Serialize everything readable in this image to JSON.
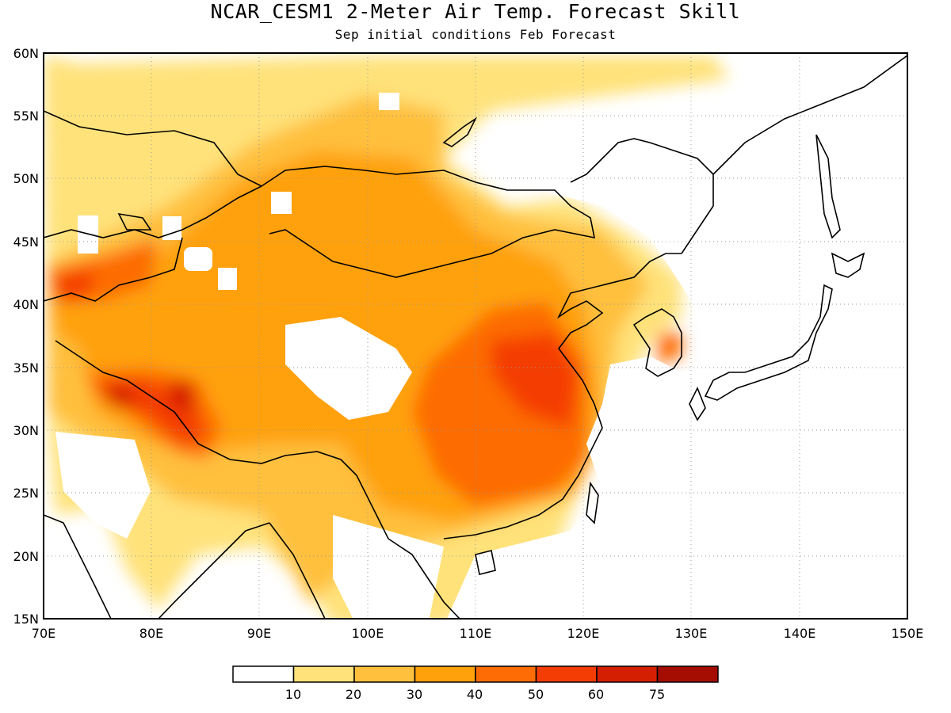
{
  "title": "NCAR_CESM1 2-Meter Air Temp. Forecast Skill",
  "subtitle": "Sep initial conditions  Feb Forecast",
  "map": {
    "lon_range": [
      70,
      150
    ],
    "lat_range": [
      15,
      60
    ],
    "grid": "dotted",
    "lon_ticks": [
      "70E",
      "80E",
      "90E",
      "100E",
      "110E",
      "120E",
      "130E",
      "140E",
      "150E"
    ],
    "lat_ticks": [
      "15N",
      "20N",
      "25N",
      "30N",
      "35N",
      "40N",
      "45N",
      "50N",
      "55N",
      "60N"
    ]
  },
  "colorbar": {
    "colors": [
      "#ffffff",
      "#ffe27a",
      "#ffc03e",
      "#ffa10b",
      "#fd6c05",
      "#f43d05",
      "#d51f03",
      "#a50d02"
    ],
    "labels": [
      "10",
      "20",
      "30",
      "40",
      "50",
      "60",
      "75"
    ]
  }
}
